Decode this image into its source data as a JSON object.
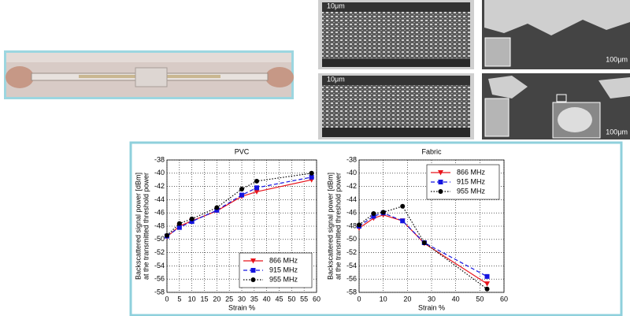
{
  "images": [
    {
      "scale_label": "10μm"
    },
    {
      "scale_label": "10μm"
    },
    {
      "scale_label": "100μm"
    },
    {
      "scale_label": "100μm"
    }
  ],
  "chart_data": [
    {
      "type": "line",
      "title": "PVC",
      "x_label": "Strain %",
      "y_label": [
        "Backscattered signal power [dBm]",
        "at the transmitted threshold power"
      ],
      "x": [
        0,
        5,
        10,
        20,
        30,
        36,
        58
      ],
      "series": [
        {
          "name": "866 MHz",
          "color": "#e8141c",
          "dash": "solid",
          "marker": "triangle-down",
          "values": [
            -49.6,
            -48.0,
            -47.2,
            -45.7,
            -43.5,
            -42.8,
            -41.0
          ]
        },
        {
          "name": "915 MHz",
          "color": "#1414e0",
          "dash": "dashed",
          "marker": "square",
          "values": [
            -49.5,
            -48.2,
            -47.3,
            -45.6,
            -43.3,
            -42.2,
            -40.6
          ]
        },
        {
          "name": "955 MHz",
          "color": "#000000",
          "dash": "dotted",
          "marker": "circle",
          "values": [
            -49.4,
            -47.6,
            -46.9,
            -45.2,
            -42.4,
            -41.2,
            -40.0
          ]
        }
      ],
      "xlim": [
        0,
        60
      ],
      "xticks": [
        0,
        5,
        10,
        15,
        20,
        25,
        30,
        35,
        40,
        45,
        50,
        55,
        60
      ],
      "ylim": [
        -58,
        -38
      ],
      "yticks": [
        -58,
        -56,
        -54,
        -52,
        -50,
        -48,
        -46,
        -44,
        -42,
        -40,
        -38
      ],
      "grid": true,
      "legend": "lower-right"
    },
    {
      "type": "line",
      "title": "Fabric",
      "x_label": "Strain %",
      "y_label": [
        "Backscattered signal power [dBm]",
        "at the transmitted threshold power"
      ],
      "x": [
        0,
        6,
        10,
        18,
        27,
        53
      ],
      "series": [
        {
          "name": "866 MHz",
          "color": "#e8141c",
          "dash": "solid",
          "marker": "triangle-down",
          "values": [
            -48.3,
            -46.8,
            -46.3,
            -47.2,
            -50.6,
            -56.7
          ]
        },
        {
          "name": "915 MHz",
          "color": "#1414e0",
          "dash": "dashed",
          "marker": "square",
          "values": [
            -48.0,
            -46.5,
            -46.0,
            -47.2,
            -50.5,
            -55.6
          ]
        },
        {
          "name": "955 MHz",
          "color": "#000000",
          "dash": "dotted",
          "marker": "circle",
          "values": [
            -47.8,
            -46.1,
            -45.9,
            -45.0,
            -50.5,
            -57.5
          ]
        }
      ],
      "xlim": [
        0,
        60
      ],
      "xticks": [
        0,
        10,
        20,
        30,
        40,
        50,
        60
      ],
      "ylim": [
        -58,
        -38
      ],
      "yticks": [
        -58,
        -56,
        -54,
        -52,
        -50,
        -48,
        -46,
        -44,
        -42,
        -40,
        -38
      ],
      "grid": true,
      "legend": "upper-right"
    }
  ]
}
